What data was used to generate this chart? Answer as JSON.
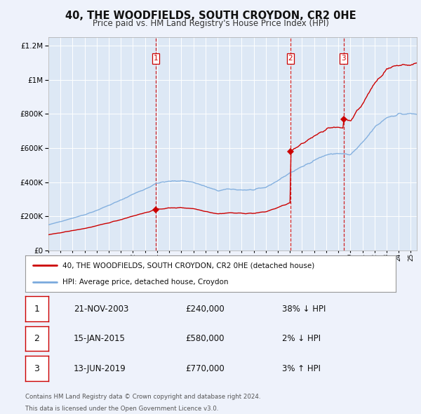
{
  "title": "40, THE WOODFIELDS, SOUTH CROYDON, CR2 0HE",
  "subtitle": "Price paid vs. HM Land Registry's House Price Index (HPI)",
  "footnote1": "Contains HM Land Registry data © Crown copyright and database right 2024.",
  "footnote2": "This data is licensed under the Open Government Licence v3.0.",
  "legend_line1": "40, THE WOODFIELDS, SOUTH CROYDON, CR2 0HE (detached house)",
  "legend_line2": "HPI: Average price, detached house, Croydon",
  "transactions": [
    {
      "num": 1,
      "date": "21-NOV-2003",
      "price": "£240,000",
      "hpi": "38% ↓ HPI",
      "year": 2003.89
    },
    {
      "num": 2,
      "date": "15-JAN-2015",
      "price": "£580,000",
      "hpi": "2% ↓ HPI",
      "year": 2015.04
    },
    {
      "num": 3,
      "date": "13-JUN-2019",
      "price": "£770,000",
      "hpi": "3% ↑ HPI",
      "year": 2019.45
    }
  ],
  "sale_values": [
    240000,
    580000,
    770000
  ],
  "sale_years": [
    2003.89,
    2015.04,
    2019.45
  ],
  "ylim": [
    0,
    1250000
  ],
  "xlim_min": 1995.0,
  "xlim_max": 2025.5,
  "bg_color": "#eef2fb",
  "plot_bg": "#dde8f5",
  "red_color": "#cc0000",
  "blue_color": "#7aaadd",
  "vline_color": "#cc0000",
  "grid_color": "#ffffff"
}
